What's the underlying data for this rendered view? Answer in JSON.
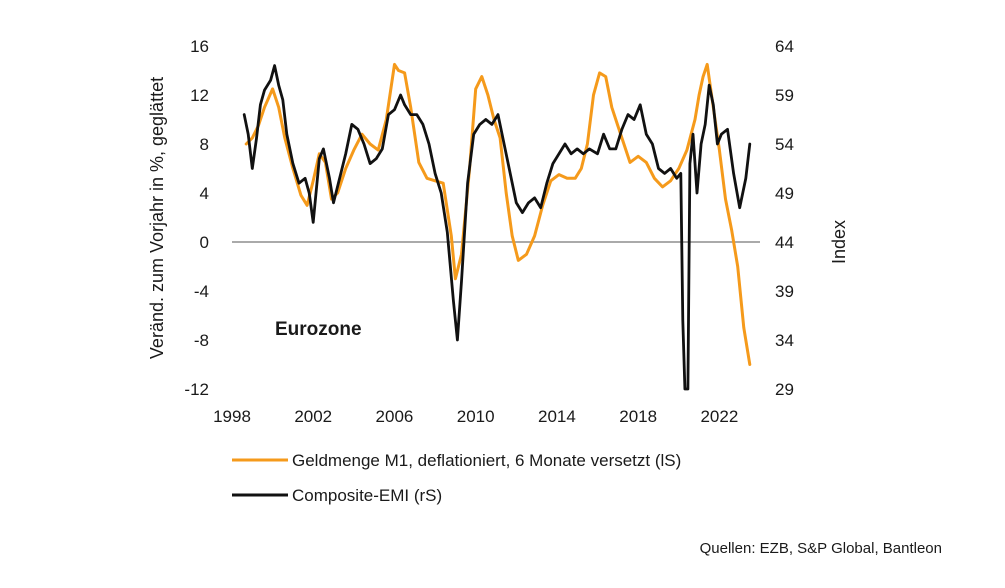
{
  "chart_data": {
    "type": "line",
    "annotation": "Eurozone",
    "ylabel_left": "Veränd. zum Vorjahr in %, geglättet",
    "ylabel_right": "Index",
    "source": "Quellen: EZB, S&P Global, Bantleon",
    "xlim": [
      1998,
      2024
    ],
    "x_ticks": [
      "1998",
      "2002",
      "2006",
      "2010",
      "2014",
      "2018",
      "2022"
    ],
    "ylim_left": [
      -12,
      16
    ],
    "y_ticks_left": [
      "16",
      "12",
      "8",
      "4",
      "0",
      "-4",
      "-8",
      "-12"
    ],
    "ylim_right": [
      29,
      64
    ],
    "y_ticks_right": [
      "64",
      "59",
      "54",
      "49",
      "44",
      "39",
      "34",
      "29"
    ],
    "zero_line": true,
    "legend_position": "bottom",
    "series": [
      {
        "name": "Geldmenge M1, deflationiert, 6 Monate versetzt (lS)",
        "axis": "left",
        "color": "#f59a1b",
        "x": [
          1998.7,
          1999.0,
          1999.3,
          1999.6,
          2000.0,
          2000.3,
          2000.6,
          2001.0,
          2001.4,
          2001.7,
          2002.0,
          2002.3,
          2002.6,
          2002.9,
          2003.2,
          2003.6,
          2004.0,
          2004.4,
          2004.8,
          2005.2,
          2005.6,
          2006.0,
          2006.2,
          2006.5,
          2006.8,
          2007.2,
          2007.6,
          2008.0,
          2008.4,
          2008.8,
          2009.0,
          2009.3,
          2009.7,
          2010.0,
          2010.3,
          2010.6,
          2010.9,
          2011.2,
          2011.5,
          2011.8,
          2012.1,
          2012.5,
          2012.9,
          2013.3,
          2013.7,
          2014.1,
          2014.5,
          2014.9,
          2015.2,
          2015.5,
          2015.8,
          2016.1,
          2016.4,
          2016.7,
          2017.0,
          2017.3,
          2017.6,
          2018.0,
          2018.4,
          2018.8,
          2019.2,
          2019.6,
          2020.0,
          2020.4,
          2020.8,
          2021.0,
          2021.2,
          2021.4,
          2021.7,
          2022.0,
          2022.3,
          2022.6,
          2022.9,
          2023.2,
          2023.5
        ],
        "values": [
          8.0,
          8.5,
          9.5,
          11.0,
          12.5,
          11.0,
          8.5,
          6.0,
          3.8,
          3.0,
          5.0,
          7.2,
          6.5,
          3.5,
          4.0,
          6.0,
          7.5,
          8.8,
          8.0,
          7.5,
          10.0,
          14.5,
          14.0,
          13.8,
          11.0,
          6.5,
          5.2,
          5.0,
          4.8,
          0.5,
          -3.0,
          -1.0,
          6.0,
          12.5,
          13.5,
          12.0,
          10.0,
          8.5,
          4.0,
          0.5,
          -1.5,
          -1.0,
          0.5,
          3.0,
          5.0,
          5.5,
          5.2,
          5.2,
          6.0,
          8.0,
          12.0,
          13.8,
          13.5,
          11.0,
          9.5,
          8.0,
          6.5,
          7.0,
          6.5,
          5.2,
          4.5,
          5.0,
          6.0,
          7.5,
          10.0,
          12.0,
          13.5,
          14.5,
          11.0,
          7.5,
          3.5,
          1.0,
          -2.0,
          -7.0,
          -10.0
        ]
      },
      {
        "name": "Composite-EMI (rS)",
        "axis": "right",
        "color": "#111111",
        "x": [
          1998.6,
          1998.8,
          1999.0,
          1999.2,
          1999.4,
          1999.6,
          1999.9,
          2000.1,
          2000.3,
          2000.5,
          2000.7,
          2001.0,
          2001.3,
          2001.6,
          2001.8,
          2002.0,
          2002.3,
          2002.5,
          2002.8,
          2003.0,
          2003.3,
          2003.6,
          2003.9,
          2004.2,
          2004.5,
          2004.8,
          2005.1,
          2005.4,
          2005.7,
          2006.0,
          2006.3,
          2006.5,
          2006.8,
          2007.1,
          2007.4,
          2007.7,
          2008.0,
          2008.3,
          2008.6,
          2008.9,
          2009.1,
          2009.3,
          2009.6,
          2009.9,
          2010.2,
          2010.5,
          2010.8,
          2011.1,
          2011.4,
          2011.7,
          2012.0,
          2012.3,
          2012.6,
          2012.9,
          2013.2,
          2013.5,
          2013.8,
          2014.1,
          2014.4,
          2014.7,
          2015.0,
          2015.3,
          2015.6,
          2016.0,
          2016.3,
          2016.6,
          2016.9,
          2017.2,
          2017.5,
          2017.8,
          2018.1,
          2018.4,
          2018.7,
          2019.0,
          2019.3,
          2019.6,
          2019.9,
          2020.1,
          2020.2,
          2020.3,
          2020.45,
          2020.55,
          2020.7,
          2020.9,
          2021.1,
          2021.3,
          2021.5,
          2021.7,
          2021.9,
          2022.1,
          2022.4,
          2022.7,
          2023.0,
          2023.3,
          2023.5
        ],
        "values": [
          57.0,
          55.0,
          51.5,
          54.5,
          58.0,
          59.5,
          60.5,
          62.0,
          60.0,
          58.5,
          55.0,
          52.0,
          50.0,
          50.5,
          49.0,
          46.0,
          52.5,
          53.5,
          50.5,
          48.0,
          50.5,
          53.0,
          56.0,
          55.5,
          54.0,
          52.0,
          52.5,
          53.5,
          57.0,
          57.5,
          59.0,
          58.0,
          57.0,
          57.0,
          56.0,
          54.0,
          51.0,
          49.0,
          45.0,
          38.0,
          34.0,
          40.0,
          50.0,
          55.0,
          56.0,
          56.5,
          56.0,
          57.0,
          54.0,
          51.0,
          48.0,
          47.0,
          48.0,
          48.5,
          47.5,
          50.0,
          52.0,
          53.0,
          54.0,
          53.0,
          53.5,
          53.0,
          53.5,
          53.0,
          55.0,
          53.5,
          53.5,
          55.5,
          57.0,
          56.5,
          58.0,
          55.0,
          54.0,
          51.5,
          51.0,
          51.5,
          50.5,
          51.0,
          36.0,
          29.0,
          29.0,
          52.0,
          55.0,
          49.0,
          54.0,
          56.0,
          60.0,
          58.0,
          54.0,
          55.0,
          55.5,
          51.0,
          47.5,
          50.5,
          54.0
        ]
      }
    ]
  }
}
